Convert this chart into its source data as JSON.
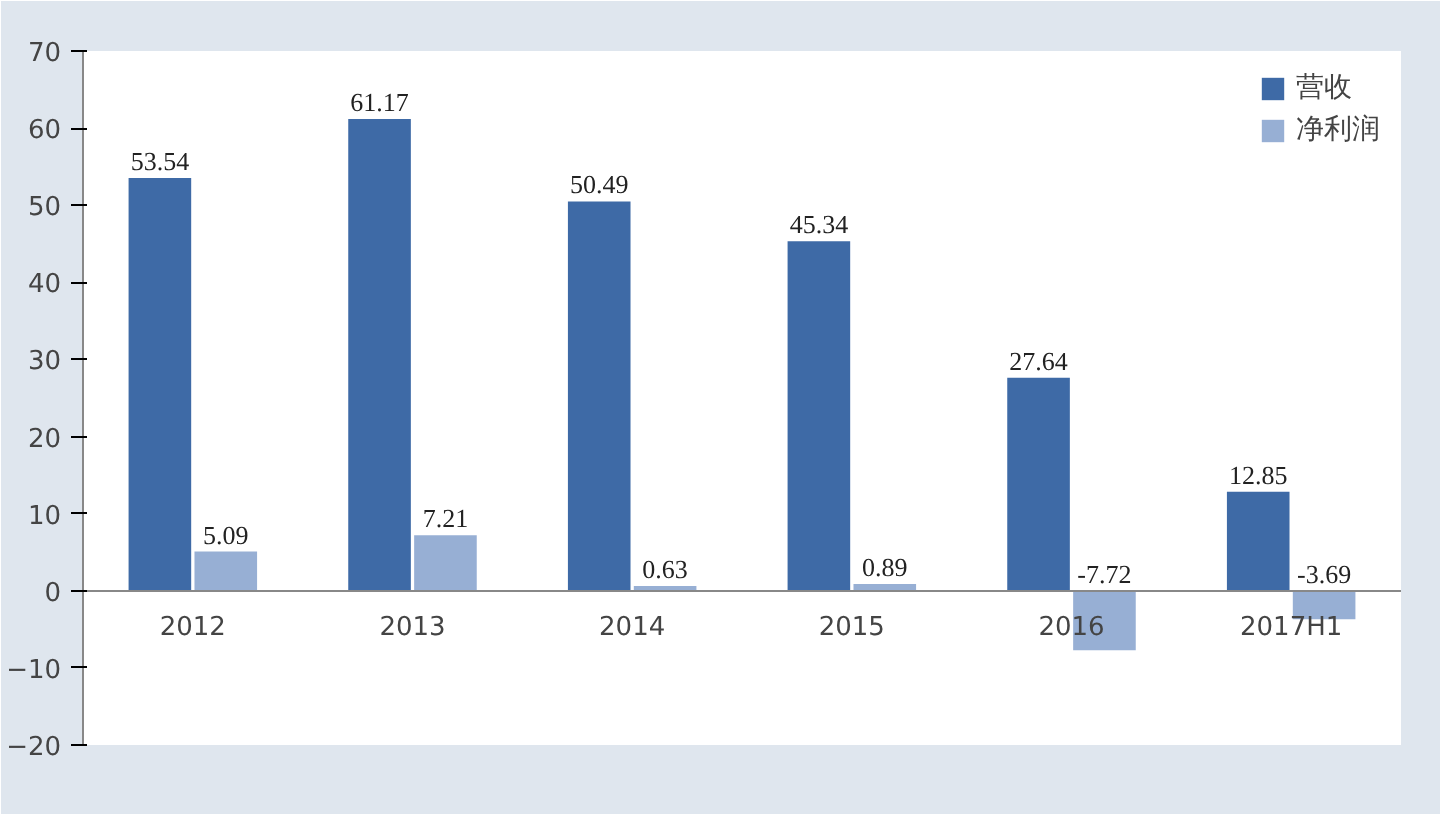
{
  "chart_data": {
    "type": "bar",
    "categories": [
      "2012",
      "2013",
      "2014",
      "2015",
      "2016",
      "2017H1"
    ],
    "series": [
      {
        "name": "营收",
        "color": "#3e6aa6",
        "values": [
          53.54,
          61.17,
          50.49,
          45.34,
          27.64,
          12.85
        ]
      },
      {
        "name": "净利润",
        "color": "#97afd4",
        "values": [
          5.09,
          7.21,
          0.63,
          0.89,
          -7.72,
          -3.69
        ]
      }
    ],
    "ylim": [
      -20,
      70
    ],
    "yticks": [
      -20,
      -10,
      0,
      10,
      20,
      30,
      40,
      50,
      60,
      70
    ],
    "grid": false,
    "legend": "top right",
    "data_labels": true
  }
}
